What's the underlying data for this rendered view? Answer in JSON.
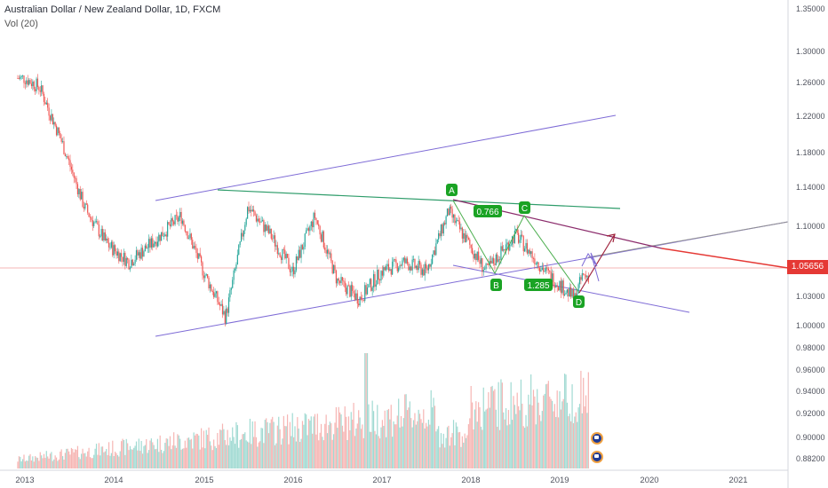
{
  "header": {
    "title": "Australian Dollar / New Zealand Dollar, 1D, FXCM",
    "volume_label": "Vol (20)"
  },
  "price_axis": {
    "ticks": [
      "1.35000",
      "1.30000",
      "1.26000",
      "1.22000",
      "1.18000",
      "1.14000",
      "1.10000",
      "1.03000",
      "1.00000",
      "0.98000",
      "0.96000",
      "0.94000",
      "0.92000",
      "0.90000",
      "0.88200"
    ],
    "current_price": "1.05656",
    "current_price_color": "#e53935"
  },
  "time_axis": {
    "ticks": [
      "2013",
      "2014",
      "2015",
      "2016",
      "2017",
      "2018",
      "2019",
      "2020",
      "2021"
    ]
  },
  "pattern": {
    "points": [
      "A",
      "B",
      "C",
      "D"
    ],
    "ratio_ac": "0.766",
    "ratio_bd": "1.285",
    "label_color": "#1aa324"
  },
  "colors": {
    "up": "#26a69a",
    "down": "#ef5350",
    "channel": "#7e6bd6",
    "trend_green": "#2e9c6a",
    "trend_red": "#e53935",
    "arrow": "#a0243d"
  },
  "icons": [
    "australia-flag-icon",
    "new-zealand-flag-icon"
  ],
  "chart_data": {
    "type": "candlestick",
    "title": "Australian Dollar / New Zealand Dollar, 1D, FXCM",
    "x_range": [
      "2012-12",
      "2021-08"
    ],
    "y_range": [
      1.0,
      1.35
    ],
    "approx_closes": [
      {
        "x": "2013-01",
        "y": 1.27
      },
      {
        "x": "2013-03",
        "y": 1.26
      },
      {
        "x": "2013-06",
        "y": 1.2
      },
      {
        "x": "2013-09",
        "y": 1.13
      },
      {
        "x": "2013-12",
        "y": 1.09
      },
      {
        "x": "2014-03",
        "y": 1.07
      },
      {
        "x": "2014-06",
        "y": 1.09
      },
      {
        "x": "2014-10",
        "y": 1.12
      },
      {
        "x": "2015-01",
        "y": 1.06
      },
      {
        "x": "2015-04",
        "y": 1.01
      },
      {
        "x": "2015-07",
        "y": 1.13
      },
      {
        "x": "2015-10",
        "y": 1.1
      },
      {
        "x": "2016-01",
        "y": 1.06
      },
      {
        "x": "2016-04",
        "y": 1.12
      },
      {
        "x": "2016-07",
        "y": 1.05
      },
      {
        "x": "2016-10",
        "y": 1.03
      },
      {
        "x": "2017-01",
        "y": 1.06
      },
      {
        "x": "2017-04",
        "y": 1.07
      },
      {
        "x": "2017-07",
        "y": 1.06
      },
      {
        "x": "2017-10",
        "y": 1.125
      },
      {
        "x": "2018-03",
        "y": 1.06
      },
      {
        "x": "2018-07",
        "y": 1.1
      },
      {
        "x": "2018-11",
        "y": 1.06
      },
      {
        "x": "2019-03",
        "y": 1.03
      },
      {
        "x": "2019-04",
        "y": 1.055
      }
    ],
    "annotations": [
      "A",
      "B",
      "C",
      "D",
      "0.766",
      "1.285"
    ],
    "lower_pane": {
      "type": "volume",
      "label": "Vol (20)"
    }
  }
}
